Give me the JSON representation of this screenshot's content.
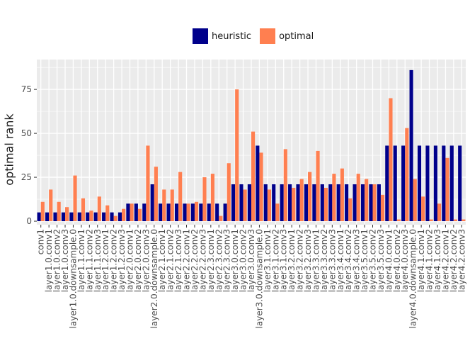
{
  "colors": {
    "heuristic": "#00008b",
    "optimal": "#ff7f50",
    "panel": "#ebebeb",
    "grid": "#ffffff",
    "text": "#4d4d4d"
  },
  "chart_data": {
    "type": "bar",
    "ylabel": "optimal rank",
    "xlabel": "",
    "ylim": [
      -2,
      92
    ],
    "yticks": [
      0,
      25,
      50,
      75
    ],
    "legend": {
      "position": "top",
      "entries": [
        "heuristic",
        "optimal"
      ]
    },
    "categories": [
      "conv1",
      "layer1.0.conv1",
      "layer1.0.conv2",
      "layer1.0.conv3",
      "layer1.0.downsample.0",
      "layer1.1.conv1",
      "layer1.1.conv2",
      "layer1.1.conv3",
      "layer1.2.conv1",
      "layer1.2.conv2",
      "layer1.2.conv3",
      "layer2.0.conv1",
      "layer2.0.conv2",
      "layer2.0.conv3",
      "layer2.0.downsample.0",
      "layer2.1.conv1",
      "layer2.1.conv2",
      "layer2.1.conv3",
      "layer2.2.conv1",
      "layer2.2.conv2",
      "layer2.2.conv3",
      "layer2.3.conv1",
      "layer2.3.conv2",
      "layer2.3.conv3",
      "layer3.0.conv1",
      "layer3.0.conv2",
      "layer3.0.conv3",
      "layer3.0.downsample.0",
      "layer3.1.conv1",
      "layer3.1.conv2",
      "layer3.1.conv3",
      "layer3.2.conv1",
      "layer3.2.conv2",
      "layer3.2.conv3",
      "layer3.3.conv1",
      "layer3.3.conv2",
      "layer3.3.conv3",
      "layer3.4.conv1",
      "layer3.4.conv2",
      "layer3.4.conv3",
      "layer3.5.conv1",
      "layer3.5.conv2",
      "layer3.5.conv3",
      "layer4.0.conv1",
      "layer4.0.conv2",
      "layer4.0.conv3",
      "layer4.0.downsample.0",
      "layer4.1.conv1",
      "layer4.1.conv2",
      "layer4.1.conv3",
      "layer4.2.conv1",
      "layer4.2.conv2",
      "layer4.2.conv3"
    ],
    "series": [
      {
        "name": "heuristic",
        "values": [
          5,
          5,
          5,
          5,
          5,
          5,
          5,
          5,
          5,
          5,
          5,
          10,
          10,
          10,
          21,
          10,
          10,
          10,
          10,
          10,
          10,
          10,
          10,
          10,
          21,
          21,
          21,
          43,
          21,
          21,
          21,
          21,
          21,
          21,
          21,
          21,
          21,
          21,
          21,
          21,
          21,
          21,
          21,
          43,
          43,
          43,
          86,
          43,
          43,
          43,
          43,
          43,
          43
        ]
      },
      {
        "name": "optimal",
        "values": [
          11,
          18,
          11,
          8,
          26,
          13,
          6,
          14,
          9,
          3,
          7,
          10,
          7,
          43,
          31,
          18,
          18,
          28,
          10,
          11,
          25,
          27,
          3,
          33,
          75,
          18,
          51,
          39,
          18,
          10,
          41,
          19,
          24,
          28,
          40,
          19,
          27,
          30,
          13,
          27,
          24,
          21,
          15,
          70,
          1,
          53,
          24,
          14,
          1,
          10,
          36,
          1,
          1
        ]
      }
    ]
  }
}
